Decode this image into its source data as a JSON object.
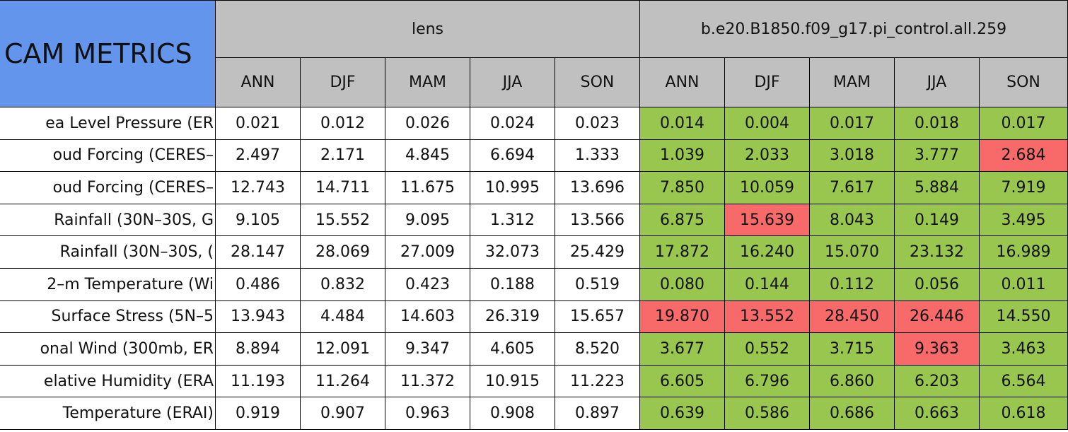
{
  "header": {
    "title": "CAM METRICS",
    "groups": [
      "lens",
      "b.e20.B1850.f09_g17.pi_control.all.259"
    ],
    "seasons": [
      "ANN",
      "DJF",
      "MAM",
      "JJA",
      "SON"
    ]
  },
  "table": {
    "rows": [
      {
        "label": "ea Level Pressure (ER",
        "cells": [
          "0.021",
          "0.012",
          "0.026",
          "0.024",
          "0.023",
          "0.014",
          "0.004",
          "0.017",
          "0.018",
          "0.017"
        ],
        "colors": [
          "#ffffff",
          "#ffffff",
          "#ffffff",
          "#ffffff",
          "#ffffff",
          "#99c64f",
          "#99c64f",
          "#99c64f",
          "#99c64f",
          "#99c64f"
        ]
      },
      {
        "label": "oud Forcing (CERES–",
        "cells": [
          "2.497",
          "2.171",
          "4.845",
          "6.694",
          "1.333",
          "1.039",
          "2.033",
          "3.018",
          "3.777",
          "2.684"
        ],
        "colors": [
          "#ffffff",
          "#ffffff",
          "#ffffff",
          "#ffffff",
          "#ffffff",
          "#99c64f",
          "#99c64f",
          "#99c64f",
          "#99c64f",
          "#f86a6a"
        ]
      },
      {
        "label": "oud Forcing (CERES–",
        "cells": [
          "12.743",
          "14.711",
          "11.675",
          "10.995",
          "13.696",
          "7.850",
          "10.059",
          "7.617",
          "5.884",
          "7.919"
        ],
        "colors": [
          "#ffffff",
          "#ffffff",
          "#ffffff",
          "#ffffff",
          "#ffffff",
          "#99c64f",
          "#99c64f",
          "#99c64f",
          "#99c64f",
          "#99c64f"
        ]
      },
      {
        "label": "Rainfall (30N–30S, G",
        "cells": [
          "9.105",
          "15.552",
          "9.095",
          "1.312",
          "13.566",
          "6.875",
          "15.639",
          "8.043",
          "0.149",
          "3.495"
        ],
        "colors": [
          "#ffffff",
          "#ffffff",
          "#ffffff",
          "#ffffff",
          "#ffffff",
          "#99c64f",
          "#f86a6a",
          "#99c64f",
          "#99c64f",
          "#99c64f"
        ]
      },
      {
        "label": "Rainfall (30N–30S, (",
        "cells": [
          "28.147",
          "28.069",
          "27.009",
          "32.073",
          "25.429",
          "17.872",
          "16.240",
          "15.070",
          "23.132",
          "16.989"
        ],
        "colors": [
          "#ffffff",
          "#ffffff",
          "#ffffff",
          "#ffffff",
          "#ffffff",
          "#99c64f",
          "#99c64f",
          "#99c64f",
          "#99c64f",
          "#99c64f"
        ]
      },
      {
        "label": "2–m Temperature (Wi",
        "cells": [
          "0.486",
          "0.832",
          "0.423",
          "0.188",
          "0.519",
          "0.080",
          "0.144",
          "0.112",
          "0.056",
          "0.011"
        ],
        "colors": [
          "#ffffff",
          "#ffffff",
          "#ffffff",
          "#ffffff",
          "#ffffff",
          "#99c64f",
          "#99c64f",
          "#99c64f",
          "#99c64f",
          "#99c64f"
        ]
      },
      {
        "label": "Surface Stress (5N–5",
        "cells": [
          "13.943",
          "4.484",
          "14.603",
          "26.319",
          "15.657",
          "19.870",
          "13.552",
          "28.450",
          "26.446",
          "14.550"
        ],
        "colors": [
          "#ffffff",
          "#ffffff",
          "#ffffff",
          "#ffffff",
          "#ffffff",
          "#f86a6a",
          "#f86a6a",
          "#f86a6a",
          "#f86a6a",
          "#99c64f"
        ]
      },
      {
        "label": "onal Wind (300mb, ER",
        "cells": [
          "8.894",
          "12.091",
          "9.347",
          "4.605",
          "8.520",
          "3.677",
          "0.552",
          "3.715",
          "9.363",
          "3.463"
        ],
        "colors": [
          "#ffffff",
          "#ffffff",
          "#ffffff",
          "#ffffff",
          "#ffffff",
          "#99c64f",
          "#99c64f",
          "#99c64f",
          "#f86a6a",
          "#99c64f"
        ]
      },
      {
        "label": "elative Humidity (ERA",
        "cells": [
          "11.193",
          "11.264",
          "11.372",
          "10.915",
          "11.223",
          "6.605",
          "6.796",
          "6.860",
          "6.203",
          "6.564"
        ],
        "colors": [
          "#ffffff",
          "#ffffff",
          "#ffffff",
          "#ffffff",
          "#ffffff",
          "#99c64f",
          "#99c64f",
          "#99c64f",
          "#99c64f",
          "#99c64f"
        ]
      },
      {
        "label": "Temperature (ERAI)",
        "cells": [
          "0.919",
          "0.907",
          "0.963",
          "0.908",
          "0.897",
          "0.639",
          "0.586",
          "0.686",
          "0.663",
          "0.618"
        ],
        "colors": [
          "#ffffff",
          "#ffffff",
          "#ffffff",
          "#ffffff",
          "#ffffff",
          "#99c64f",
          "#99c64f",
          "#99c64f",
          "#99c64f",
          "#99c64f"
        ]
      }
    ]
  }
}
